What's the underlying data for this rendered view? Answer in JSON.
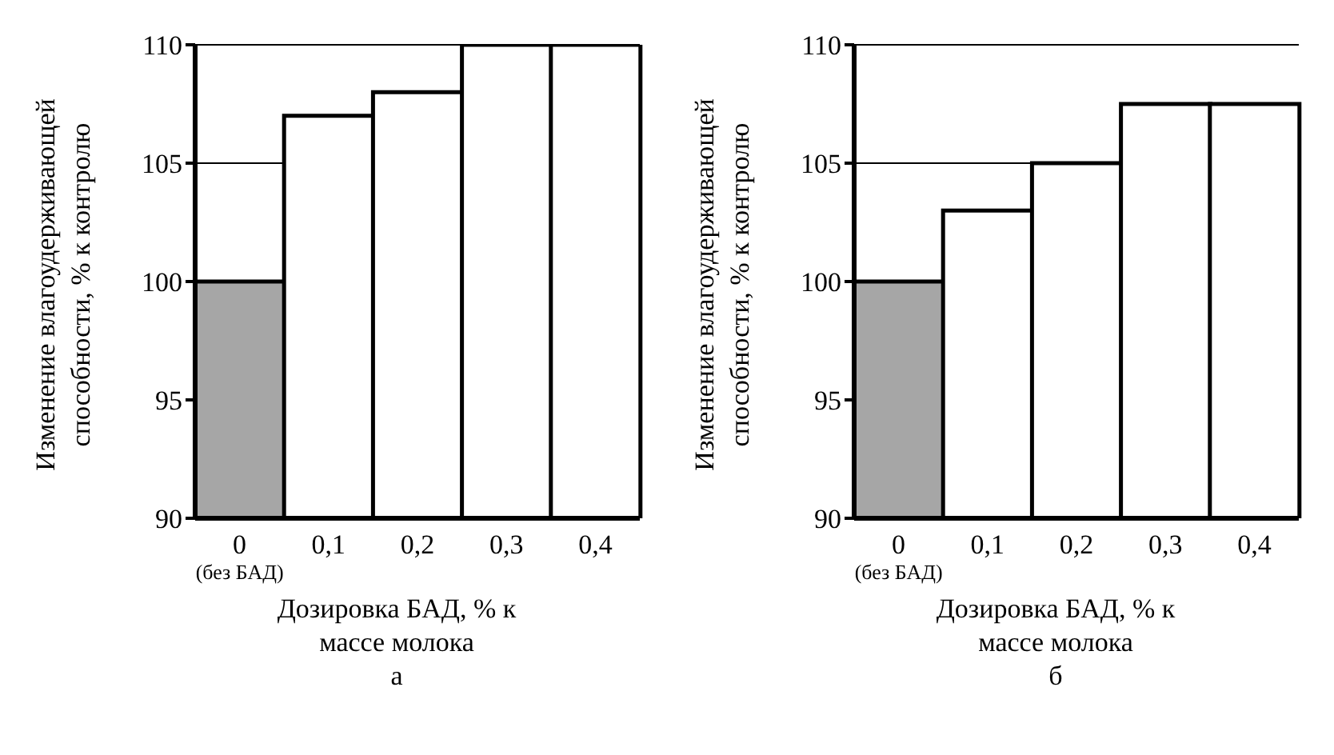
{
  "chart_data": [
    {
      "type": "bar",
      "categories": [
        "0\n(без БАД)",
        "0,1",
        "0,2",
        "0,3",
        "0,4"
      ],
      "values": [
        100,
        107,
        108,
        110,
        110
      ],
      "colors": [
        "#a6a6a6",
        "#ffffff",
        "#ffffff",
        "#ffffff",
        "#ffffff"
      ],
      "ylim": [
        90,
        110
      ],
      "yticks": [
        90,
        95,
        100,
        105,
        110
      ],
      "grid": "y",
      "ylabel": "Изменение влагоудерживающей\nспособности, % к контролю",
      "xlabel": "Дозировка БАД, % к\nмассе молока",
      "annotations": [
        "а"
      ]
    },
    {
      "type": "bar",
      "categories": [
        "0\n(без БАД)",
        "0,1",
        "0,2",
        "0,3",
        "0,4"
      ],
      "values": [
        100,
        103,
        105,
        107.5,
        107.5
      ],
      "colors": [
        "#a6a6a6",
        "#ffffff",
        "#ffffff",
        "#ffffff",
        "#ffffff"
      ],
      "ylim": [
        90,
        110
      ],
      "yticks": [
        90,
        95,
        100,
        105,
        110
      ],
      "grid": "y",
      "ylabel": "Изменение влагоудерживающей\nспособности, % к контролю",
      "xlabel": "Дозировка БАД, % к\nмассе молока",
      "annotations": [
        "б"
      ]
    }
  ]
}
